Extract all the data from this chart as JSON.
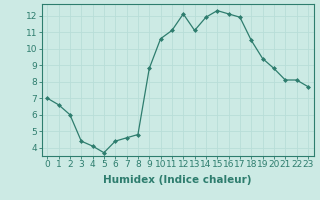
{
  "x": [
    0,
    1,
    2,
    3,
    4,
    5,
    6,
    7,
    8,
    9,
    10,
    11,
    12,
    13,
    14,
    15,
    16,
    17,
    18,
    19,
    20,
    21,
    22,
    23
  ],
  "y": [
    7.0,
    6.6,
    6.0,
    4.4,
    4.1,
    3.7,
    4.4,
    4.6,
    4.8,
    8.8,
    10.6,
    11.1,
    12.1,
    11.1,
    11.9,
    12.3,
    12.1,
    11.9,
    10.5,
    9.4,
    8.8,
    8.1,
    8.1,
    7.7
  ],
  "line_color": "#2e7d6e",
  "marker": "D",
  "marker_size": 2.0,
  "xlabel": "Humidex (Indice chaleur)",
  "xlim": [
    -0.5,
    23.5
  ],
  "ylim": [
    3.5,
    12.7
  ],
  "yticks": [
    4,
    5,
    6,
    7,
    8,
    9,
    10,
    11,
    12
  ],
  "xticks": [
    0,
    1,
    2,
    3,
    4,
    5,
    6,
    7,
    8,
    9,
    10,
    11,
    12,
    13,
    14,
    15,
    16,
    17,
    18,
    19,
    20,
    21,
    22,
    23
  ],
  "grid_color": "#b8ddd8",
  "bg_color": "#cceae4",
  "tick_fontsize": 6.5,
  "xlabel_fontsize": 7.5
}
